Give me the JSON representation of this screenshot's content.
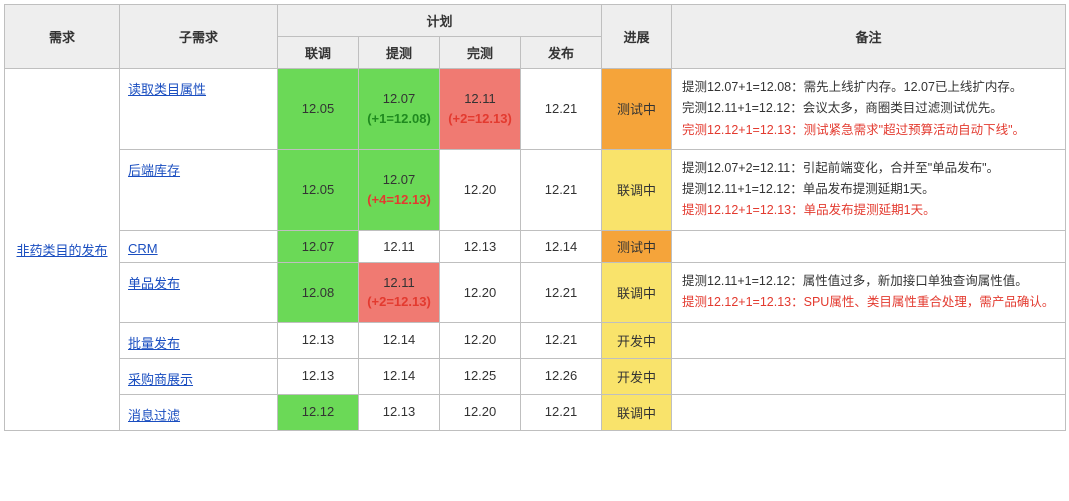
{
  "colors": {
    "green": "#6bd957",
    "red": "#f07a72",
    "orange": "#f5a43a",
    "yellow": "#f9e36b",
    "header_bg": "#eeeeee",
    "border": "#bfbfbf",
    "link": "#1a4ec0",
    "delta_red": "#e33a2f",
    "delta_green": "#1f8a1f"
  },
  "header": {
    "req": "需求",
    "subreq": "子需求",
    "plan": "计划",
    "progress": "进展",
    "note": "备注",
    "plan_sub": {
      "liantiao": "联调",
      "tice": "提测",
      "wance": "完测",
      "fabu": "发布"
    }
  },
  "requirement": "非药类目的发布",
  "rows": [
    {
      "subreq": "读取类目属性",
      "liantiao": {
        "text": "12.05",
        "bg": "green"
      },
      "tice": {
        "text": "12.07",
        "delta": "(+1=12.08)",
        "delta_color": "green",
        "bg": "green"
      },
      "wance": {
        "text": "12.11",
        "delta": "(+2=12.13)",
        "delta_color": "red",
        "bg": "red"
      },
      "fabu": {
        "text": "12.21"
      },
      "progress": {
        "text": "测试中",
        "bg": "orange"
      },
      "note": [
        {
          "text": "提测12.07+1=12.08：需先上线扩内存。12.07已上线扩内存。",
          "red": false
        },
        {
          "text": "完测12.11+1=12.12：会议太多，商圈类目过滤测试优先。",
          "red": false
        },
        {
          "text": "完测12.12+1=12.13：测试紧急需求\"超过预算活动自动下线\"。",
          "red": true
        }
      ]
    },
    {
      "subreq": "后端库存",
      "liantiao": {
        "text": "12.05",
        "bg": "green"
      },
      "tice": {
        "text": "12.07",
        "delta": "(+4=12.13)",
        "delta_color": "red",
        "bg": "green"
      },
      "wance": {
        "text": "12.20"
      },
      "fabu": {
        "text": "12.21"
      },
      "progress": {
        "text": "联调中",
        "bg": "yellow"
      },
      "note": [
        {
          "text": "提测12.07+2=12.11：引起前端变化，合并至\"单品发布\"。",
          "red": false
        },
        {
          "text": "提测12.11+1=12.12：单品发布提测延期1天。",
          "red": false
        },
        {
          "text": "提测12.12+1=12.13：单品发布提测延期1天。",
          "red": true
        }
      ]
    },
    {
      "subreq": "CRM",
      "liantiao": {
        "text": "12.07",
        "bg": "green"
      },
      "tice": {
        "text": "12.11"
      },
      "wance": {
        "text": "12.13"
      },
      "fabu": {
        "text": "12.14"
      },
      "progress": {
        "text": "测试中",
        "bg": "orange"
      },
      "note": []
    },
    {
      "subreq": "单品发布",
      "liantiao": {
        "text": "12.08",
        "bg": "green"
      },
      "tice": {
        "text": "12.11",
        "delta": "(+2=12.13)",
        "delta_color": "red",
        "bg": "red"
      },
      "wance": {
        "text": "12.20"
      },
      "fabu": {
        "text": "12.21"
      },
      "progress": {
        "text": "联调中",
        "bg": "yellow"
      },
      "note": [
        {
          "text": "提测12.11+1=12.12：属性值过多，新加接口单独查询属性值。",
          "red": false
        },
        {
          "text": "提测12.12+1=12.13：SPU属性、类目属性重合处理，需产品确认。",
          "red": true
        }
      ]
    },
    {
      "subreq": "批量发布",
      "liantiao": {
        "text": "12.13"
      },
      "tice": {
        "text": "12.14"
      },
      "wance": {
        "text": "12.20"
      },
      "fabu": {
        "text": "12.21"
      },
      "progress": {
        "text": "开发中",
        "bg": "yellow"
      },
      "note": []
    },
    {
      "subreq": "采购商展示",
      "liantiao": {
        "text": "12.13"
      },
      "tice": {
        "text": "12.14"
      },
      "wance": {
        "text": "12.25"
      },
      "fabu": {
        "text": "12.26"
      },
      "progress": {
        "text": "开发中",
        "bg": "yellow"
      },
      "note": []
    },
    {
      "subreq": "消息过滤",
      "liantiao": {
        "text": "12.12",
        "bg": "green"
      },
      "tice": {
        "text": "12.13"
      },
      "wance": {
        "text": "12.20"
      },
      "fabu": {
        "text": "12.21"
      },
      "progress": {
        "text": "联调中",
        "bg": "yellow"
      },
      "note": []
    }
  ]
}
